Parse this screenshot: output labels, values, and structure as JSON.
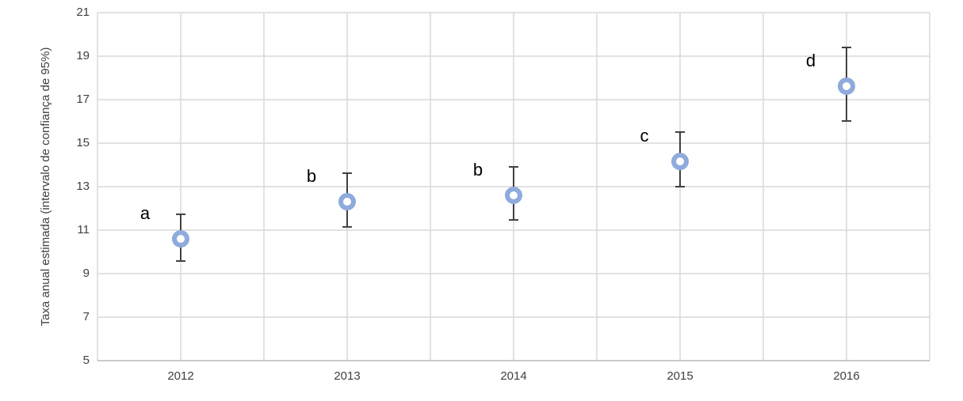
{
  "chart_data": {
    "type": "scatter",
    "y_label": "Taxa anual estimada (intervalo de confiança de 95%)",
    "categories": [
      "2012",
      "2013",
      "2014",
      "2015",
      "2016"
    ],
    "values": [
      10.6,
      12.31,
      12.6,
      14.16,
      17.62
    ],
    "ci_low": [
      9.58,
      11.15,
      11.47,
      13.0,
      16.02
    ],
    "ci_high": [
      11.73,
      13.62,
      13.91,
      15.51,
      19.4
    ],
    "point_labels": [
      "a",
      "b",
      "b",
      "c",
      "d"
    ],
    "color": "#8faadc",
    "error_color": "#404040",
    "ylim": [
      5,
      21
    ],
    "yticks": [
      5,
      7,
      9,
      11,
      13,
      15,
      17,
      19,
      21
    ],
    "grid": true
  }
}
